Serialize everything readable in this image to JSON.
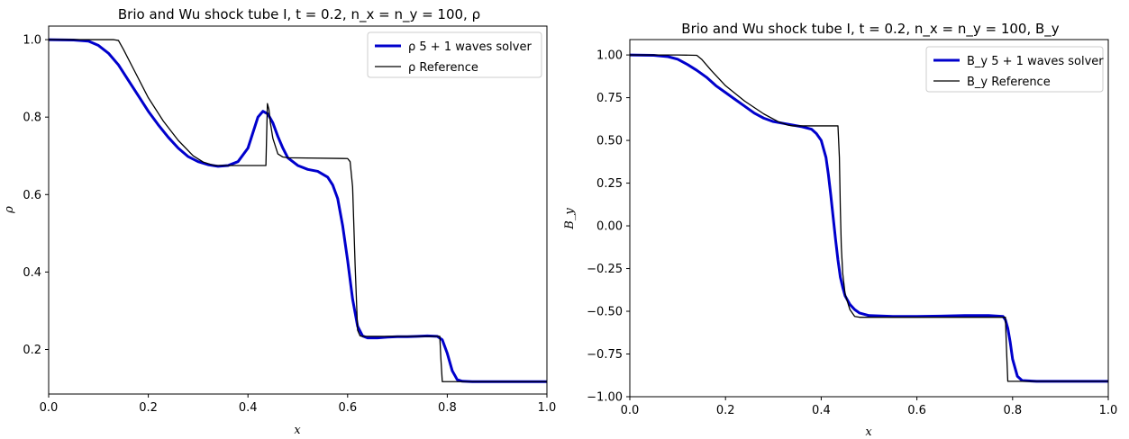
{
  "colors": {
    "solver": "#0000cc",
    "reference": "#000000"
  },
  "chart_data": [
    {
      "type": "line",
      "title": "Brio and Wu shock tube I, t = 0.2, n_x = n_y = 100, ρ",
      "xlabel": "x",
      "ylabel": "ρ",
      "xlim": [
        0.0,
        1.0
      ],
      "ylim": [
        0.085,
        1.035
      ],
      "xticks": [
        "0.0",
        "0.2",
        "0.4",
        "0.6",
        "0.8",
        "1.0"
      ],
      "yticks": [
        "0.2",
        "0.4",
        "0.6",
        "0.8",
        "1.0"
      ],
      "grid": false,
      "legend_position": "top-right",
      "series": [
        {
          "name": "ρ 5 + 1 waves solver",
          "style": "solver",
          "x": [
            0.0,
            0.05,
            0.08,
            0.1,
            0.12,
            0.14,
            0.16,
            0.18,
            0.2,
            0.22,
            0.24,
            0.26,
            0.28,
            0.3,
            0.32,
            0.34,
            0.36,
            0.38,
            0.4,
            0.41,
            0.42,
            0.43,
            0.44,
            0.45,
            0.46,
            0.47,
            0.48,
            0.5,
            0.52,
            0.54,
            0.56,
            0.57,
            0.58,
            0.59,
            0.6,
            0.61,
            0.62,
            0.63,
            0.64,
            0.65,
            0.66,
            0.68,
            0.7,
            0.72,
            0.74,
            0.76,
            0.78,
            0.79,
            0.8,
            0.81,
            0.82,
            0.83,
            0.85,
            0.9,
            1.0
          ],
          "y": [
            1.0,
            0.999,
            0.996,
            0.985,
            0.965,
            0.935,
            0.895,
            0.855,
            0.815,
            0.78,
            0.748,
            0.72,
            0.698,
            0.685,
            0.677,
            0.673,
            0.675,
            0.685,
            0.72,
            0.76,
            0.8,
            0.815,
            0.808,
            0.785,
            0.75,
            0.72,
            0.695,
            0.675,
            0.665,
            0.66,
            0.645,
            0.625,
            0.59,
            0.52,
            0.43,
            0.33,
            0.26,
            0.235,
            0.23,
            0.23,
            0.23,
            0.232,
            0.233,
            0.233,
            0.234,
            0.235,
            0.234,
            0.225,
            0.19,
            0.145,
            0.122,
            0.118,
            0.117,
            0.117,
            0.117
          ]
        },
        {
          "name": "ρ Reference",
          "style": "reference",
          "x": [
            0.0,
            0.1,
            0.13,
            0.14,
            0.15,
            0.17,
            0.2,
            0.23,
            0.26,
            0.29,
            0.31,
            0.33,
            0.335,
            0.34,
            0.436,
            0.439,
            0.442,
            0.445,
            0.45,
            0.46,
            0.47,
            0.48,
            0.6,
            0.605,
            0.61,
            0.615,
            0.62,
            0.625,
            0.63,
            0.785,
            0.787,
            0.79,
            1.0
          ],
          "y": [
            1.0,
            1.0,
            1.0,
            0.998,
            0.975,
            0.925,
            0.85,
            0.79,
            0.74,
            0.7,
            0.684,
            0.676,
            0.675,
            0.675,
            0.675,
            0.835,
            0.82,
            0.785,
            0.745,
            0.705,
            0.697,
            0.695,
            0.693,
            0.685,
            0.62,
            0.42,
            0.25,
            0.235,
            0.234,
            0.234,
            0.18,
            0.117,
            0.117
          ]
        }
      ]
    },
    {
      "type": "line",
      "title": "Brio and Wu shock tube I, t = 0.2, n_x = n_y = 100, B_y",
      "xlabel": "x",
      "ylabel": "B_y",
      "xlim": [
        0.0,
        1.0
      ],
      "ylim": [
        -1.0,
        1.09
      ],
      "xticks": [
        "0.0",
        "0.2",
        "0.4",
        "0.6",
        "0.8",
        "1.0"
      ],
      "yticks": [
        "1.00",
        "0.75",
        "0.50",
        "0.25",
        "0.00",
        "−0.25",
        "−0.50",
        "−0.75",
        "−1.00"
      ],
      "grid": false,
      "legend_position": "top-right",
      "series": [
        {
          "name": "B_y 5 + 1 waves solver",
          "style": "solver",
          "x": [
            0.0,
            0.05,
            0.08,
            0.1,
            0.12,
            0.14,
            0.16,
            0.18,
            0.2,
            0.22,
            0.24,
            0.26,
            0.28,
            0.3,
            0.32,
            0.34,
            0.36,
            0.38,
            0.39,
            0.4,
            0.41,
            0.415,
            0.42,
            0.425,
            0.43,
            0.435,
            0.44,
            0.445,
            0.45,
            0.46,
            0.47,
            0.48,
            0.5,
            0.55,
            0.6,
            0.65,
            0.7,
            0.75,
            0.78,
            0.785,
            0.79,
            0.795,
            0.8,
            0.81,
            0.82,
            0.85,
            0.9,
            1.0
          ],
          "y": [
            1.0,
            0.998,
            0.99,
            0.975,
            0.945,
            0.91,
            0.87,
            0.82,
            0.78,
            0.74,
            0.7,
            0.66,
            0.63,
            0.61,
            0.6,
            0.59,
            0.58,
            0.565,
            0.54,
            0.5,
            0.4,
            0.3,
            0.18,
            0.05,
            -0.08,
            -0.2,
            -0.3,
            -0.36,
            -0.41,
            -0.46,
            -0.49,
            -0.51,
            -0.525,
            -0.53,
            -0.53,
            -0.528,
            -0.525,
            -0.525,
            -0.53,
            -0.55,
            -0.6,
            -0.68,
            -0.78,
            -0.88,
            -0.905,
            -0.91,
            -0.91,
            -0.91
          ]
        },
        {
          "name": "B_y Reference",
          "style": "reference",
          "x": [
            0.0,
            0.1,
            0.14,
            0.15,
            0.17,
            0.2,
            0.24,
            0.28,
            0.31,
            0.33,
            0.34,
            0.43,
            0.435,
            0.438,
            0.44,
            0.442,
            0.445,
            0.45,
            0.46,
            0.47,
            0.48,
            0.785,
            0.787,
            0.79,
            1.0
          ],
          "y": [
            1.0,
            1.0,
            0.998,
            0.975,
            0.91,
            0.82,
            0.73,
            0.655,
            0.61,
            0.59,
            0.585,
            0.585,
            0.585,
            0.4,
            0.1,
            -0.12,
            -0.28,
            -0.4,
            -0.49,
            -0.53,
            -0.535,
            -0.535,
            -0.7,
            -0.91,
            -0.91
          ]
        }
      ]
    }
  ]
}
